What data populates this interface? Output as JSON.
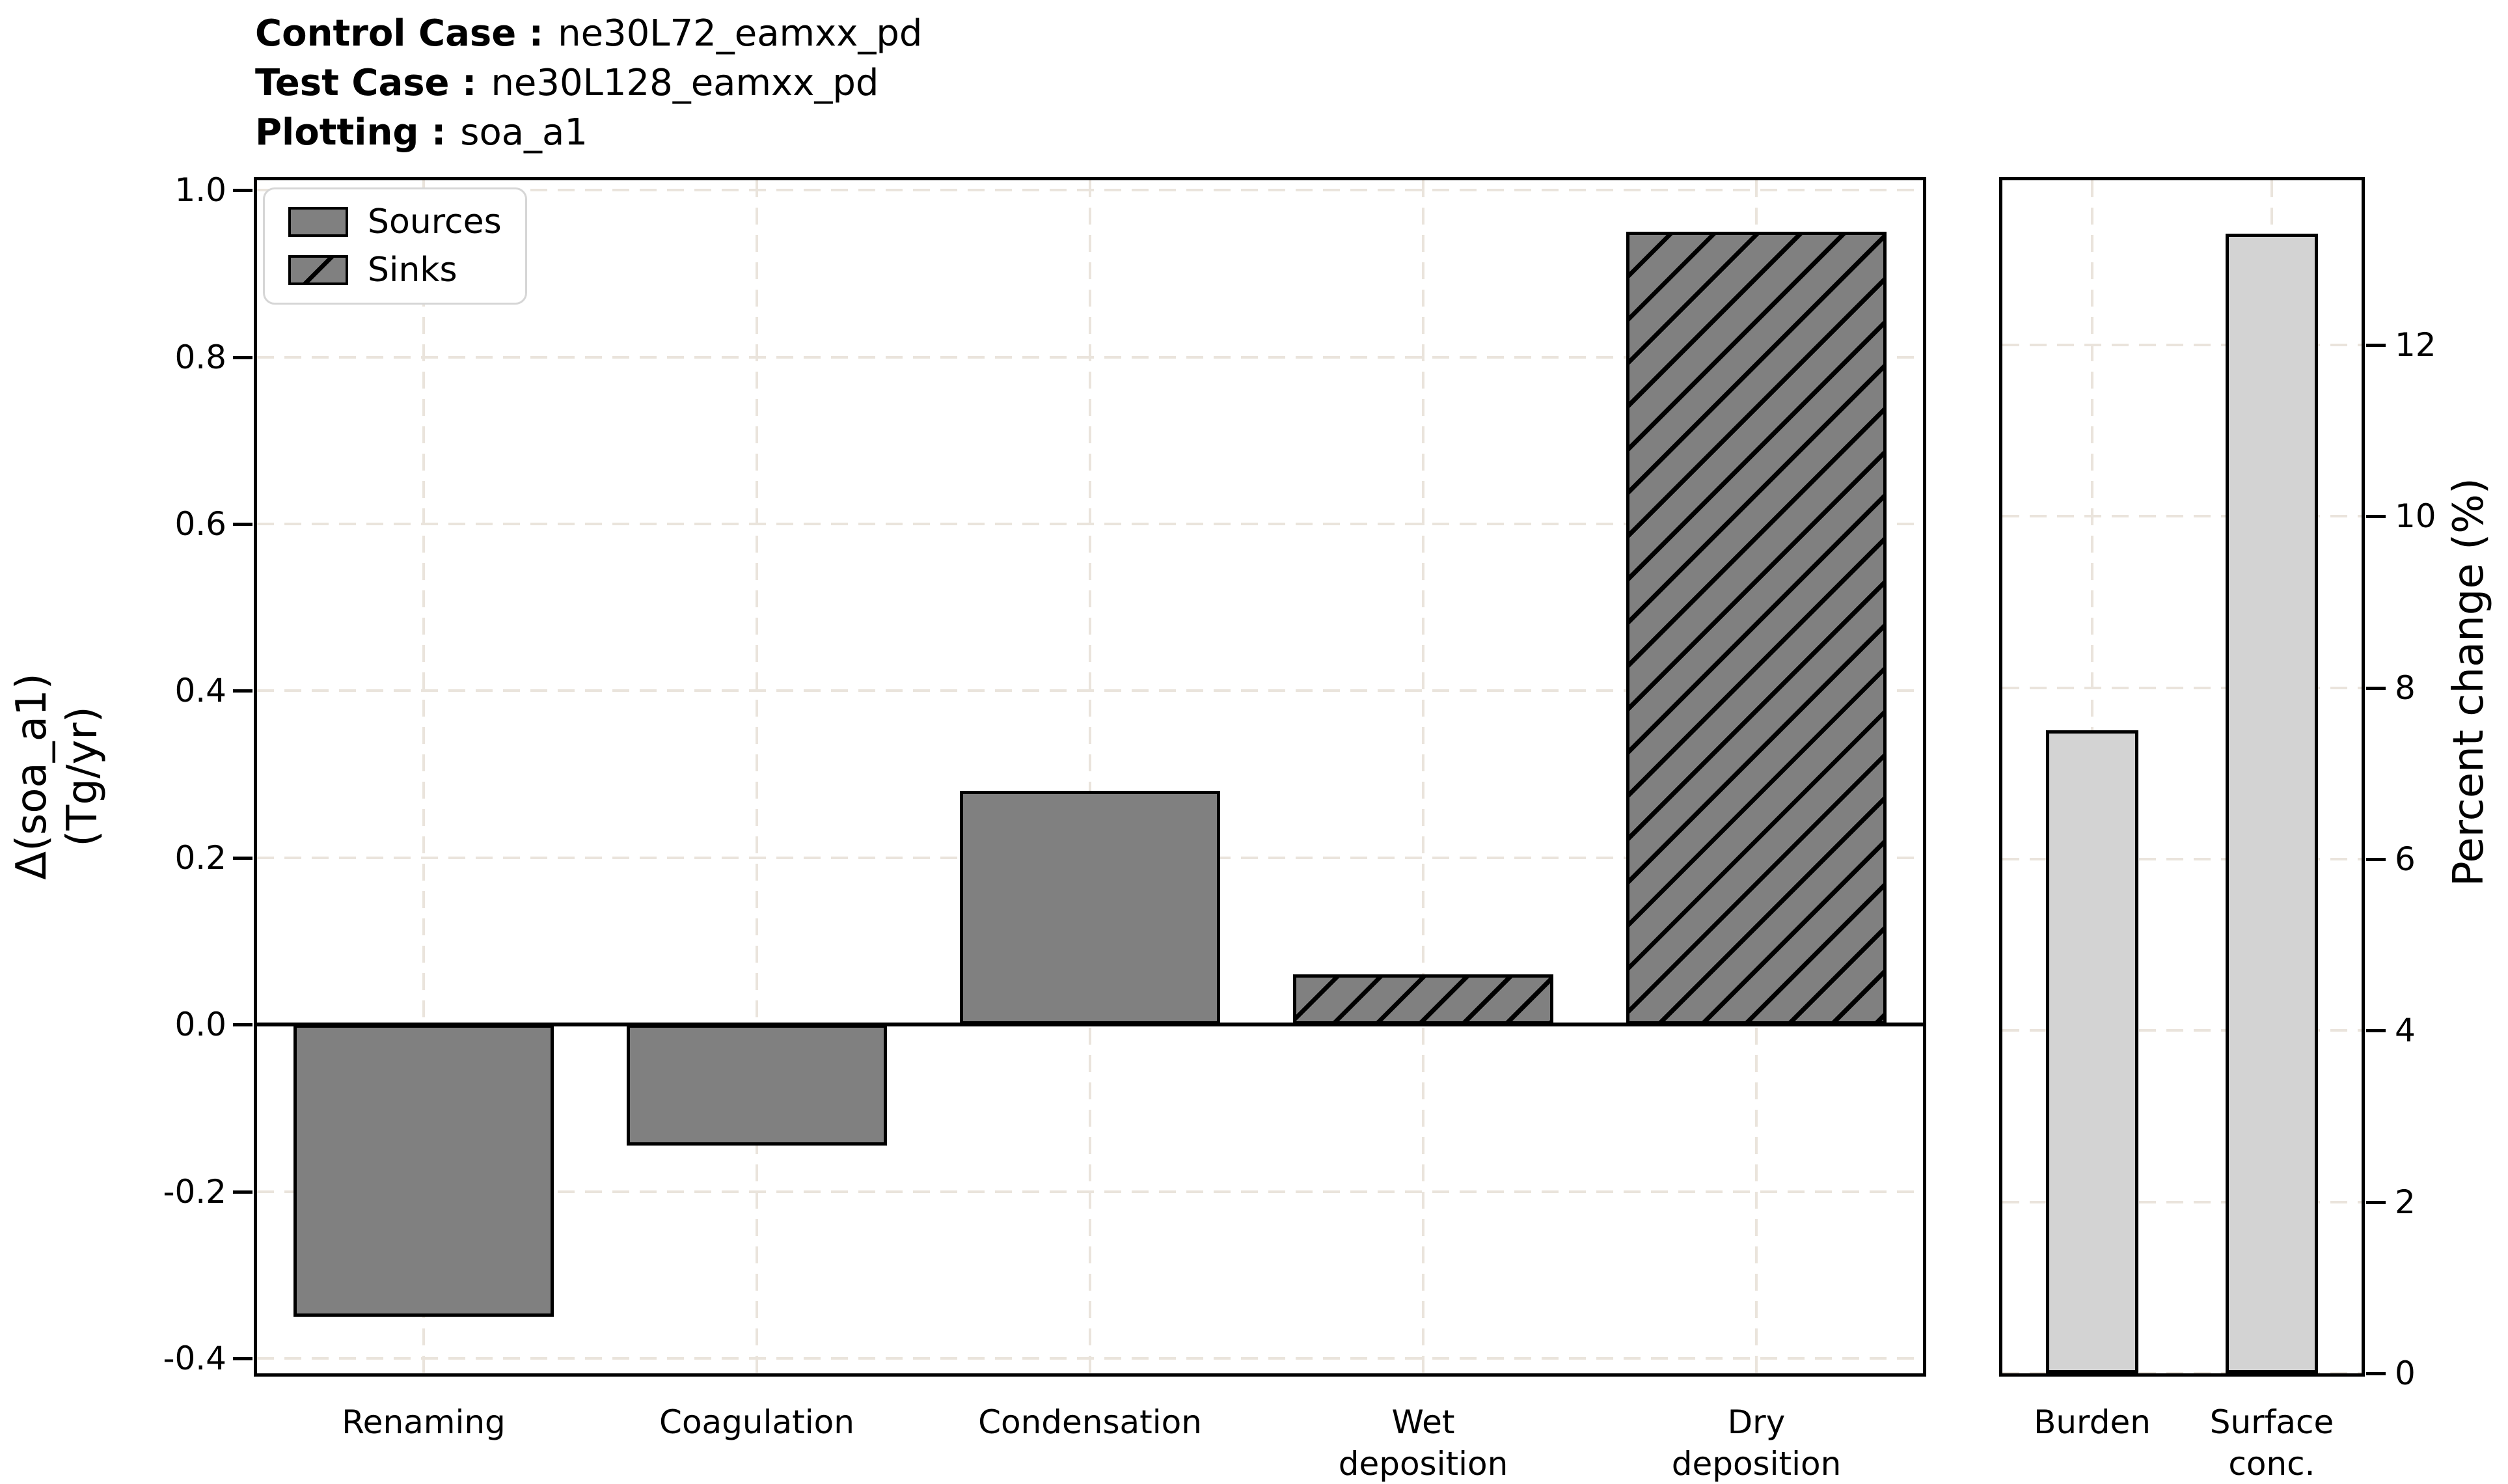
{
  "header": {
    "control_case_label": "Control Case :",
    "control_case_value": "ne30L72_eamxx_pd",
    "test_case_label": "Test Case :",
    "test_case_value": "ne30L128_eamxx_pd",
    "plotting_label": "Plotting :",
    "plotting_value": "soa_a1"
  },
  "legend": {
    "items": [
      {
        "label": "Sources",
        "style": "solid"
      },
      {
        "label": "Sinks",
        "style": "hatch"
      }
    ]
  },
  "colors": {
    "solid_bar": "#808080",
    "light_bar": "#d3d3d3",
    "bar_edge": "#000000",
    "grid": "#eae4dc",
    "legend_border": "#d6d6d6",
    "background": "#ffffff"
  },
  "chart_data": [
    {
      "type": "bar",
      "title": "",
      "ylabel_lines": [
        "Δ(soa_a1)",
        "(Tg/yr)"
      ],
      "categories": [
        "Renaming",
        "Coagulation",
        "Condensation",
        "Wet\ndeposition",
        "Dry\ndeposition"
      ],
      "values": [
        -0.35,
        -0.145,
        0.28,
        0.06,
        0.95
      ],
      "bar_styles": [
        "solid",
        "solid",
        "solid",
        "hatch",
        "hatch"
      ],
      "series_meaning": "Sources are solid bars, Sinks are hatched bars",
      "yticks": [
        "1.0",
        "0.8",
        "0.6",
        "0.4",
        "0.2",
        "0.0",
        "-0.2",
        "-0.4"
      ],
      "ylim": [
        -0.418,
        1.012
      ],
      "zero_line": true,
      "grid": true,
      "legend_position": "upper left"
    },
    {
      "type": "bar",
      "title": "",
      "ylabel": "Percent change (%)",
      "categories": [
        "Burden",
        "Surface\nconc."
      ],
      "values": [
        7.5,
        13.3
      ],
      "bar_styles": [
        "light",
        "light"
      ],
      "yticks": [
        "0",
        "2",
        "4",
        "6",
        "8",
        "10",
        "12"
      ],
      "ylim": [
        0,
        13.92
      ],
      "zero_line": false,
      "grid": true,
      "yaxis_side": "right"
    }
  ]
}
